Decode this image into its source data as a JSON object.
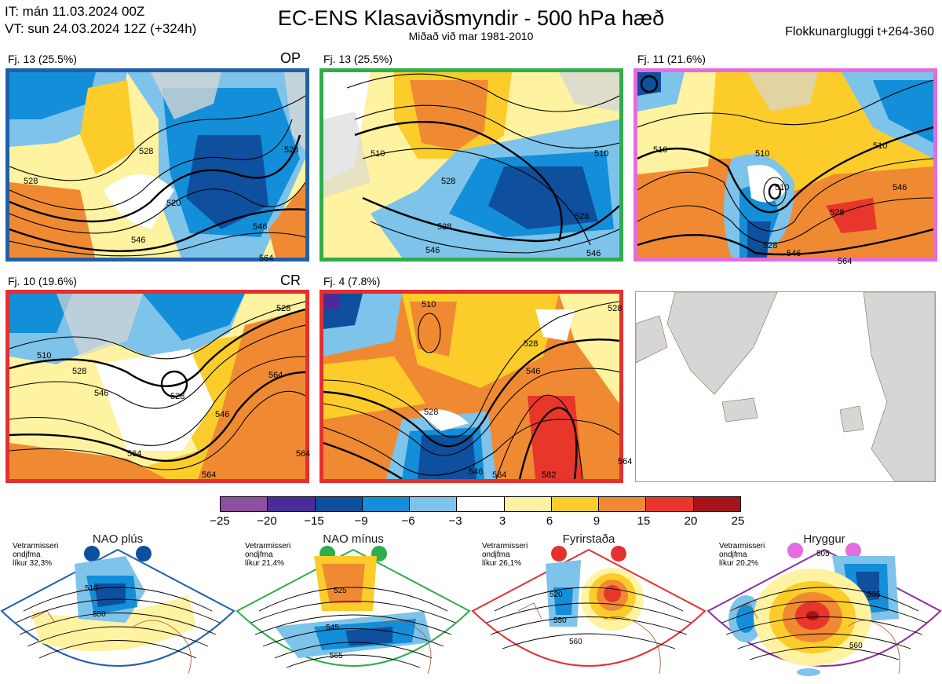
{
  "header": {
    "it_line": "IT: mán 11.03.2024 00Z",
    "vt_line": "VT: sun 24.03.2024 12Z  (+324h)",
    "title": "EC-ENS Klasaviðsmyndir - 500 hPa hæð",
    "subtitle": "Miðað við mar 1981-2010",
    "window": "Flokkunargluggi t+264-360"
  },
  "panels": [
    {
      "label": "Fj. 13 (25.5%)",
      "tag": "OP",
      "border": "#1f5fa8",
      "contours": [
        {
          "x": 165,
          "y": 102,
          "text": "528"
        },
        {
          "x": 18,
          "y": 140,
          "text": "528"
        },
        {
          "x": 200,
          "y": 168,
          "text": "520"
        },
        {
          "x": 155,
          "y": 215,
          "text": "546"
        },
        {
          "x": 310,
          "y": 198,
          "text": "546"
        },
        {
          "x": 350,
          "y": 100,
          "text": "528"
        },
        {
          "x": 318,
          "y": 238,
          "text": "564"
        }
      ]
    },
    {
      "label": "Fj. 13 (25.5%)",
      "tag": "",
      "border": "#2fad4a",
      "contours": [
        {
          "x": 60,
          "y": 105,
          "text": "510"
        },
        {
          "x": 150,
          "y": 140,
          "text": "528"
        },
        {
          "x": 345,
          "y": 105,
          "text": "510"
        },
        {
          "x": 320,
          "y": 185,
          "text": "528"
        },
        {
          "x": 145,
          "y": 198,
          "text": "528"
        },
        {
          "x": 130,
          "y": 228,
          "text": "546"
        },
        {
          "x": 335,
          "y": 232,
          "text": "546"
        }
      ]
    },
    {
      "label": "Fj. 11 (21.6%)",
      "tag": "",
      "border": "#e56be0",
      "contours": [
        {
          "x": 20,
          "y": 100,
          "text": "510"
        },
        {
          "x": 150,
          "y": 105,
          "text": "510"
        },
        {
          "x": 300,
          "y": 95,
          "text": "510"
        },
        {
          "x": 245,
          "y": 180,
          "text": "528"
        },
        {
          "x": 175,
          "y": 148,
          "text": "510"
        },
        {
          "x": 325,
          "y": 148,
          "text": "546"
        },
        {
          "x": 160,
          "y": 222,
          "text": "528"
        },
        {
          "x": 190,
          "y": 232,
          "text": "546"
        },
        {
          "x": 255,
          "y": 242,
          "text": "564"
        }
      ]
    },
    {
      "label": "Fj. 10 (19.6%)",
      "tag": "CR",
      "border": "#e53030",
      "contours": [
        {
          "x": 35,
          "y": 80,
          "text": "510"
        },
        {
          "x": 80,
          "y": 100,
          "text": "528"
        },
        {
          "x": 108,
          "y": 128,
          "text": "546"
        },
        {
          "x": 205,
          "y": 132,
          "text": "528"
        },
        {
          "x": 262,
          "y": 155,
          "text": "546"
        },
        {
          "x": 150,
          "y": 205,
          "text": "564"
        },
        {
          "x": 245,
          "y": 232,
          "text": "564"
        },
        {
          "x": 330,
          "y": 105,
          "text": "564"
        },
        {
          "x": 340,
          "y": 20,
          "text": "528"
        },
        {
          "x": 365,
          "y": 205,
          "text": "564"
        }
      ]
    },
    {
      "label": "Fj. 4 (7.8%)",
      "tag": "",
      "border": "#e53030",
      "contours": [
        {
          "x": 125,
          "y": 15,
          "text": "510"
        },
        {
          "x": 255,
          "y": 65,
          "text": "528"
        },
        {
          "x": 258,
          "y": 100,
          "text": "546"
        },
        {
          "x": 128,
          "y": 152,
          "text": "528"
        },
        {
          "x": 185,
          "y": 228,
          "text": "546"
        },
        {
          "x": 215,
          "y": 232,
          "text": "564"
        },
        {
          "x": 278,
          "y": 232,
          "text": "582"
        },
        {
          "x": 362,
          "y": 20,
          "text": "528"
        },
        {
          "x": 375,
          "y": 215,
          "text": "564"
        }
      ]
    },
    {
      "label": "",
      "tag": "",
      "border": "#9a9a9a",
      "contours": []
    }
  ],
  "colorbar": {
    "ticks": [
      "−25",
      "−20",
      "−15",
      "−9",
      "−6",
      "−3",
      "3",
      "6",
      "9",
      "15",
      "20",
      "25"
    ],
    "colors": [
      "#8e4fa0",
      "#4b2b97",
      "#0e4f9e",
      "#138ed8",
      "#7ec3ea",
      "#ffffff",
      "#fff2a0",
      "#fccd2a",
      "#f08a32",
      "#e8362b",
      "#a6131a"
    ]
  },
  "regimes": [
    {
      "title": "NAO plús",
      "note": [
        "Vetrarmisseri",
        "ondjfma",
        "líkur 32,3%"
      ],
      "color": "#1f5fa8",
      "dot": "#0e4f9e",
      "contours": [
        {
          "x": 108,
          "y": 72,
          "text": "510"
        },
        {
          "x": 118,
          "y": 105,
          "text": "550"
        }
      ]
    },
    {
      "title": "NAO mínus",
      "note": [
        "Vetrarmisseri",
        "ondjfma",
        "líkur 21,4%"
      ],
      "color": "#2fad4a",
      "dot": "#2fad4a",
      "contours": [
        {
          "x": 125,
          "y": 75,
          "text": "525"
        },
        {
          "x": 115,
          "y": 122,
          "text": "545"
        },
        {
          "x": 120,
          "y": 158,
          "text": "565"
        }
      ]
    },
    {
      "title": "Fyrirstaða",
      "note": [
        "Vetrarmisseri",
        "ondjfma",
        "líkur 26,1%"
      ],
      "color": "#e53030",
      "dot": "#e53030",
      "contours": [
        {
          "x": 100,
          "y": 80,
          "text": "520"
        },
        {
          "x": 105,
          "y": 113,
          "text": "550"
        },
        {
          "x": 125,
          "y": 140,
          "text": "560"
        }
      ]
    },
    {
      "title": "Hryggur",
      "note": [
        "Vetrarmisseri",
        "ondjfma",
        "líkur 20,2%"
      ],
      "color": "#8e2f9e",
      "dot": "#e56be0",
      "contours": [
        {
          "x": 140,
          "y": 28,
          "text": "505"
        },
        {
          "x": 205,
          "y": 80,
          "text": "535"
        },
        {
          "x": 182,
          "y": 145,
          "text": "560"
        }
      ]
    }
  ]
}
